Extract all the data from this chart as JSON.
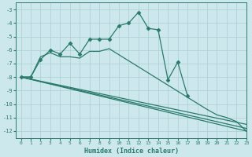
{
  "xlabel": "Humidex (Indice chaleur)",
  "xlim": [
    -0.5,
    23
  ],
  "ylim": [
    -12.5,
    -2.5
  ],
  "yticks": [
    -3,
    -4,
    -5,
    -6,
    -7,
    -8,
    -9,
    -10,
    -11,
    -12
  ],
  "xticks": [
    0,
    1,
    2,
    3,
    4,
    5,
    6,
    7,
    8,
    9,
    10,
    11,
    12,
    13,
    14,
    15,
    16,
    17,
    18,
    19,
    20,
    21,
    22,
    23
  ],
  "bg_color": "#cce8ec",
  "grid_color": "#aacdd4",
  "line_color": "#2a7a6a",
  "lines": [
    {
      "x": [
        0,
        1,
        2,
        3,
        4,
        5,
        6,
        7,
        8,
        9,
        10,
        11,
        12,
        13,
        14,
        15,
        16,
        17,
        18,
        19,
        20,
        21,
        22,
        23
      ],
      "y": [
        -8.0,
        -8.0,
        -6.7,
        -6.0,
        -6.3,
        -5.5,
        -6.3,
        -5.2,
        -5.2,
        -5.2,
        -4.2,
        -4.0,
        -3.2,
        -4.4,
        -4.5,
        -8.2,
        -6.9,
        -9.4,
        null,
        null,
        null,
        null,
        null,
        null
      ],
      "marker": "D",
      "markersize": 2.5,
      "linewidth": 0.9
    },
    {
      "x": [
        0,
        1,
        2,
        3,
        4,
        5,
        6,
        7,
        8,
        9,
        19,
        20,
        21,
        22,
        23
      ],
      "y": [
        -8.0,
        -8.0,
        -6.5,
        -6.2,
        -6.5,
        -6.5,
        -6.6,
        -6.1,
        -6.1,
        -5.9,
        -10.4,
        -10.8,
        -11.0,
        -11.3,
        -12.0
      ],
      "marker": "None",
      "markersize": 0,
      "linewidth": 0.9
    },
    {
      "x": [
        0,
        23
      ],
      "y": [
        -8.0,
        -11.8
      ],
      "marker": "None",
      "markersize": 0,
      "linewidth": 0.9
    },
    {
      "x": [
        0,
        23
      ],
      "y": [
        -8.0,
        -12.0
      ],
      "marker": "None",
      "markersize": 0,
      "linewidth": 0.9
    },
    {
      "x": [
        0,
        23
      ],
      "y": [
        -8.0,
        -11.5
      ],
      "marker": "None",
      "markersize": 0,
      "linewidth": 0.9
    }
  ]
}
